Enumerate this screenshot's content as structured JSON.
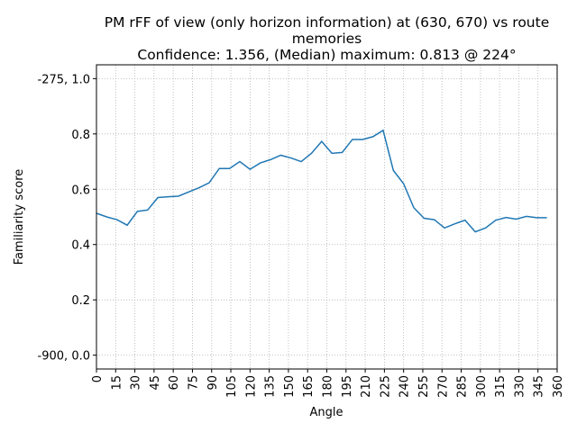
{
  "chart_data": {
    "type": "line",
    "title": "PM rFF of view (only horizon information) at (630, 670) vs route memories",
    "subtitle": "Confidence: 1.356, (Median) maximum: 0.813 @ 224°",
    "x_label": "Angle",
    "y_label": "Familiarity score",
    "x": [
      0,
      8,
      16,
      24,
      32,
      40,
      48,
      56,
      64,
      72,
      80,
      88,
      96,
      104,
      112,
      120,
      128,
      136,
      144,
      152,
      160,
      168,
      176,
      184,
      192,
      200,
      208,
      216,
      224,
      232,
      240,
      248,
      256,
      264,
      272,
      280,
      288,
      296,
      304,
      312,
      320,
      328,
      336,
      344,
      352
    ],
    "series": [
      {
        "name": "Familiarity score",
        "color": "#1f77b4",
        "values": [
          0.513,
          0.5,
          0.49,
          0.47,
          0.52,
          0.525,
          0.57,
          0.573,
          0.575,
          0.59,
          0.605,
          0.623,
          0.675,
          0.675,
          0.7,
          0.672,
          0.695,
          0.707,
          0.723,
          0.713,
          0.7,
          0.73,
          0.773,
          0.73,
          0.733,
          0.78,
          0.78,
          0.79,
          0.813,
          0.668,
          0.62,
          0.533,
          0.495,
          0.49,
          0.46,
          0.475,
          0.488,
          0.446,
          0.46,
          0.488,
          0.498,
          0.492,
          0.502,
          0.497,
          0.497
        ]
      }
    ],
    "xlim": [
      0,
      360
    ],
    "ylim": [
      -0.05,
      1.05
    ],
    "xticks": [
      0,
      15,
      30,
      45,
      60,
      75,
      90,
      105,
      120,
      135,
      150,
      165,
      180,
      195,
      210,
      225,
      240,
      255,
      270,
      285,
      300,
      315,
      330,
      345,
      360
    ],
    "yticks": [
      {
        "value": 0.0,
        "label": "-900, 0.0"
      },
      0.2,
      0.4,
      0.6,
      0.8,
      {
        "value": 1.0,
        "label": "-275, 1.0"
      }
    ],
    "grid": true
  }
}
